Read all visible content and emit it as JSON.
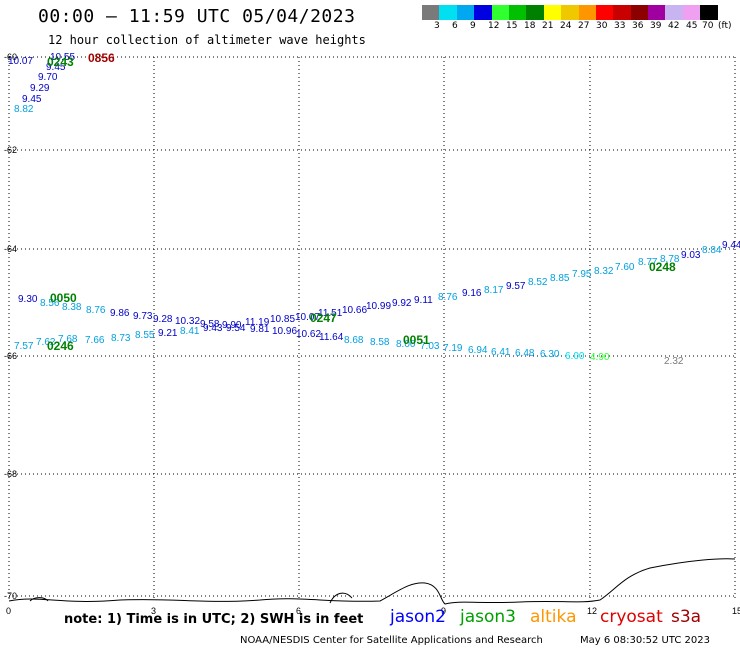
{
  "header": {
    "title": "00:00 – 11:59 UTC 05/04/2023",
    "subtitle": "12 hour collection of altimeter wave heights"
  },
  "legend": {
    "colors": [
      "#7a7a7a",
      "#00e0f0",
      "#00a8f0",
      "#0000e0",
      "#30ff30",
      "#00c000",
      "#008000",
      "#ffff00",
      "#f0c800",
      "#ff9600",
      "#ff0000",
      "#c80000",
      "#8c0000",
      "#a000a0",
      "#c8b4f0",
      "#f0a0f0",
      "#000000"
    ],
    "labels": [
      "3",
      "6",
      "9",
      "12",
      "15",
      "18",
      "21",
      "24",
      "27",
      "30",
      "33",
      "36",
      "39",
      "42",
      "45",
      "70",
      "(ft)"
    ]
  },
  "axes": {
    "lat_labels": [
      "-60",
      "-62",
      "-64",
      "-66",
      "-68",
      "-70"
    ],
    "lon_labels": [
      "0",
      "3",
      "6",
      "9",
      "12",
      "15"
    ]
  },
  "passes": [
    {
      "time": "0856",
      "color": "#a00000"
    },
    {
      "time": "0050",
      "color": "#008000"
    },
    {
      "time": "0246",
      "color": "#008000"
    },
    {
      "time": "0247",
      "color": "#008000"
    },
    {
      "time": "0051",
      "color": "#008000"
    },
    {
      "time": "0248",
      "color": "#008000"
    },
    {
      "time": "0243",
      "color": "#008000"
    }
  ],
  "values": [
    {
      "t": "10.07",
      "c": "#0000c8"
    },
    {
      "t": "10.55",
      "c": "#0000c8"
    },
    {
      "t": "9.45",
      "c": "#0000c8"
    },
    {
      "t": "9.70",
      "c": "#0000c8"
    },
    {
      "t": "9.29",
      "c": "#0000c8"
    },
    {
      "t": "9.45",
      "c": "#0000c8"
    },
    {
      "t": "8.82",
      "c": "#00a0e0"
    },
    {
      "t": "9.30",
      "c": "#0000c8"
    },
    {
      "t": "8.56",
      "c": "#00a0e0"
    },
    {
      "t": "8.38",
      "c": "#00a0e0"
    },
    {
      "t": "8.76",
      "c": "#00a0e0"
    },
    {
      "t": "9.86",
      "c": "#0000c8"
    },
    {
      "t": "9.73",
      "c": "#0000c8"
    },
    {
      "t": "9.28",
      "c": "#0000c8"
    },
    {
      "t": "10.32",
      "c": "#0000c8"
    },
    {
      "t": "9.58",
      "c": "#0000c8"
    },
    {
      "t": "9.90",
      "c": "#0000c8"
    },
    {
      "t": "11.19",
      "c": "#0000c8"
    },
    {
      "t": "10.85",
      "c": "#0000c8"
    },
    {
      "t": "10.07",
      "c": "#0000c8"
    },
    {
      "t": "11.51",
      "c": "#0000c8"
    },
    {
      "t": "10.66",
      "c": "#0000c8"
    },
    {
      "t": "10.99",
      "c": "#0000c8"
    },
    {
      "t": "9.92",
      "c": "#0000c8"
    },
    {
      "t": "9.11",
      "c": "#0000c8"
    },
    {
      "t": "8.76",
      "c": "#00a0e0"
    },
    {
      "t": "9.16",
      "c": "#0000c8"
    },
    {
      "t": "8.17",
      "c": "#00a0e0"
    },
    {
      "t": "9.57",
      "c": "#0000c8"
    },
    {
      "t": "8.52",
      "c": "#00a0e0"
    },
    {
      "t": "8.85",
      "c": "#00a0e0"
    },
    {
      "t": "7.95",
      "c": "#00a0e0"
    },
    {
      "t": "8.32",
      "c": "#00a0e0"
    },
    {
      "t": "7.60",
      "c": "#00a0e0"
    },
    {
      "t": "8.77",
      "c": "#00a0e0"
    },
    {
      "t": "8.78",
      "c": "#00a0e0"
    },
    {
      "t": "9.03",
      "c": "#0000c8"
    },
    {
      "t": "8.84",
      "c": "#00a0e0"
    },
    {
      "t": "9.44",
      "c": "#0000c8"
    },
    {
      "t": "7.57",
      "c": "#00a0e0"
    },
    {
      "t": "7.62",
      "c": "#00a0e0"
    },
    {
      "t": "7.68",
      "c": "#00a0e0"
    },
    {
      "t": "7.66",
      "c": "#00a0e0"
    },
    {
      "t": "8.73",
      "c": "#00a0e0"
    },
    {
      "t": "8.55",
      "c": "#00a0e0"
    },
    {
      "t": "9.21",
      "c": "#0000c8"
    },
    {
      "t": "8.41",
      "c": "#00a0e0"
    },
    {
      "t": "9.43",
      "c": "#0000c8"
    },
    {
      "t": "9.54",
      "c": "#0000c8"
    },
    {
      "t": "9.81",
      "c": "#0000c8"
    },
    {
      "t": "10.96",
      "c": "#0000c8"
    },
    {
      "t": "10.62",
      "c": "#0000c8"
    },
    {
      "t": "11.64",
      "c": "#0000c8"
    },
    {
      "t": "8.68",
      "c": "#00a0e0"
    },
    {
      "t": "8.58",
      "c": "#00a0e0"
    },
    {
      "t": "8.00",
      "c": "#00a0e0"
    },
    {
      "t": "7.03",
      "c": "#00a0e0"
    },
    {
      "t": "7.19",
      "c": "#00a0e0"
    },
    {
      "t": "6.94",
      "c": "#00a0e0"
    },
    {
      "t": "6.41",
      "c": "#00a0e0"
    },
    {
      "t": "6.48",
      "c": "#00a0e0"
    },
    {
      "t": "6.30",
      "c": "#00a0e0"
    },
    {
      "t": "6.00",
      "c": "#00e0f0"
    },
    {
      "t": "4.90",
      "c": "#30ff30"
    },
    {
      "t": "2.32",
      "c": "#7a7a7a"
    }
  ],
  "footer": {
    "note": "note: 1) Time is in UTC; 2) SWH is in feet",
    "satellites": [
      {
        "name": "jason2",
        "color": "#0000ff"
      },
      {
        "name": "jason3",
        "color": "#00a000"
      },
      {
        "name": "altika",
        "color": "#ff9600"
      },
      {
        "name": "cryosat",
        "color": "#e00000"
      },
      {
        "name": "s3a",
        "color": "#a00000"
      }
    ],
    "credit": "NOAA/NESDIS Center for Satellite Applications and Research",
    "generated": "May  6 08:30:52 UTC 2023"
  }
}
